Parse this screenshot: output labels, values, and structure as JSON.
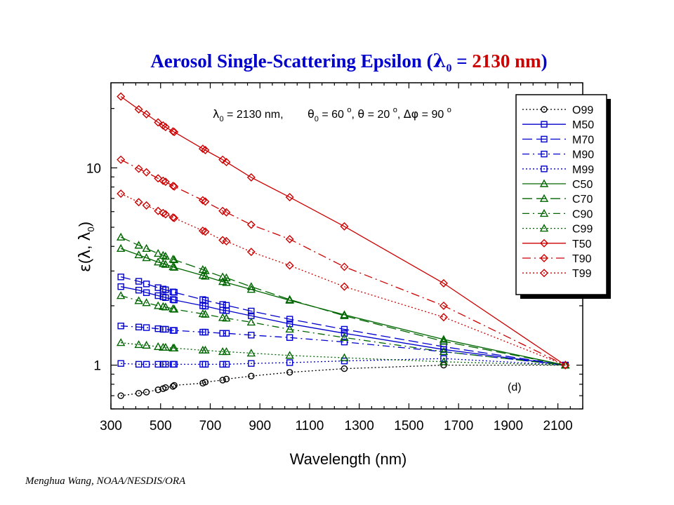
{
  "chart_data": {
    "type": "line",
    "title": {
      "prefix": "Aerosol Single-Scattering Epsilon (",
      "lambda_sym": "λ",
      "lambda_sub": "0",
      "equals": " = ",
      "value": "2130 nm",
      "suffix": ")"
    },
    "xlabel": "Wavelength (nm)",
    "ylabel": {
      "epsilon": "ε",
      "open": "(",
      "lam": "λ",
      "sep": ", ",
      "lam0": "λ",
      "sub": "0",
      "close": ")"
    },
    "xlim": [
      300,
      2200
    ],
    "ylim": [
      0.6,
      27
    ],
    "yscale": "log",
    "xticks": [
      300,
      500,
      700,
      900,
      1100,
      1300,
      1500,
      1700,
      1900,
      2100
    ],
    "yticks": [
      1,
      10
    ],
    "grid": false,
    "legend_position": "top-right",
    "annotation": {
      "l0": "λ",
      "l0_sub": "0",
      "l0_val": " = 2130 nm,",
      "th0": "θ",
      "th0_sub": "0",
      "th0_val": " = 60 ",
      "deg": "o",
      "th_sep": ", ",
      "th": "θ",
      "th_val": " = 20 ",
      "phi_sep": ", ",
      "dphi": "Δφ",
      "dphi_val": " = 90 "
    },
    "panel_label": "(d)",
    "x": [
      340,
      412,
      443,
      490,
      510,
      520,
      550,
      555,
      670,
      680,
      750,
      765,
      865,
      1020,
      1240,
      1640,
      2130
    ],
    "series": [
      {
        "name": "O99",
        "color": "#000000",
        "dash": "2,3",
        "marker": "circle",
        "values": [
          0.7,
          0.72,
          0.73,
          0.75,
          0.76,
          0.77,
          0.78,
          0.79,
          0.81,
          0.82,
          0.84,
          0.85,
          0.88,
          0.92,
          0.96,
          1.0,
          1.0
        ]
      },
      {
        "name": "M50",
        "color": "#0000cc",
        "dash": "",
        "marker": "square",
        "values": [
          2.5,
          2.4,
          2.33,
          2.25,
          2.22,
          2.2,
          2.15,
          2.14,
          2.0,
          1.99,
          1.9,
          1.89,
          1.78,
          1.62,
          1.45,
          1.2,
          1.0
        ]
      },
      {
        "name": "M70",
        "color": "#0000cc",
        "dash": "14,6",
        "marker": "square",
        "values": [
          2.8,
          2.66,
          2.58,
          2.47,
          2.43,
          2.41,
          2.35,
          2.34,
          2.15,
          2.13,
          2.03,
          2.01,
          1.88,
          1.71,
          1.52,
          1.24,
          1.0
        ]
      },
      {
        "name": "M90",
        "color": "#0000cc",
        "dash": "10,5,2,5",
        "marker": "square",
        "values": [
          1.58,
          1.56,
          1.55,
          1.53,
          1.52,
          1.52,
          1.5,
          1.5,
          1.47,
          1.47,
          1.45,
          1.45,
          1.42,
          1.38,
          1.31,
          1.17,
          1.0
        ]
      },
      {
        "name": "M99",
        "color": "#0000cc",
        "dash": "2,3",
        "marker": "square",
        "values": [
          1.02,
          1.01,
          1.01,
          1.01,
          1.01,
          1.01,
          1.01,
          1.01,
          1.01,
          1.01,
          1.01,
          1.01,
          1.02,
          1.03,
          1.05,
          1.08,
          1.0
        ]
      },
      {
        "name": "C50",
        "color": "#006600",
        "dash": "",
        "marker": "triangle",
        "values": [
          3.9,
          3.62,
          3.5,
          3.33,
          3.27,
          3.24,
          3.15,
          3.13,
          2.85,
          2.82,
          2.65,
          2.62,
          2.42,
          2.13,
          1.8,
          1.35,
          1.0
        ]
      },
      {
        "name": "C70",
        "color": "#006600",
        "dash": "14,6",
        "marker": "triangle",
        "values": [
          4.45,
          4.05,
          3.9,
          3.68,
          3.6,
          3.56,
          3.44,
          3.42,
          3.05,
          3.01,
          2.8,
          2.77,
          2.5,
          2.15,
          1.78,
          1.32,
          1.0
        ]
      },
      {
        "name": "C90",
        "color": "#006600",
        "dash": "10,5,2,5",
        "marker": "triangle",
        "values": [
          2.25,
          2.12,
          2.07,
          2.0,
          1.98,
          1.97,
          1.93,
          1.92,
          1.82,
          1.81,
          1.74,
          1.73,
          1.65,
          1.52,
          1.38,
          1.17,
          1.0
        ]
      },
      {
        "name": "C99",
        "color": "#006600",
        "dash": "2,3",
        "marker": "triangle",
        "values": [
          1.3,
          1.27,
          1.26,
          1.24,
          1.23,
          1.23,
          1.22,
          1.22,
          1.19,
          1.19,
          1.17,
          1.17,
          1.15,
          1.12,
          1.09,
          1.04,
          1.0
        ]
      },
      {
        "name": "T50",
        "color": "#cc0000",
        "dash": "",
        "marker": "diamond",
        "values": [
          23.0,
          19.8,
          18.7,
          17.0,
          16.4,
          16.1,
          15.3,
          15.2,
          12.5,
          12.3,
          11.0,
          10.7,
          8.95,
          7.1,
          5.05,
          2.6,
          1.0
        ]
      },
      {
        "name": "T90",
        "color": "#cc0000",
        "dash": "12,5,2,5",
        "marker": "diamond",
        "values": [
          11.0,
          9.9,
          9.5,
          8.85,
          8.6,
          8.5,
          8.1,
          8.05,
          6.85,
          6.75,
          6.05,
          5.95,
          5.15,
          4.35,
          3.15,
          2.0,
          1.0
        ]
      },
      {
        "name": "T99",
        "color": "#cc0000",
        "dash": "2,3",
        "marker": "diamond",
        "values": [
          7.4,
          6.7,
          6.45,
          6.05,
          5.9,
          5.82,
          5.6,
          5.57,
          4.8,
          4.75,
          4.3,
          4.25,
          3.75,
          3.2,
          2.5,
          1.75,
          1.0
        ]
      }
    ]
  },
  "credit": "Menghua Wang, NOAA/NESDIS/ORA"
}
